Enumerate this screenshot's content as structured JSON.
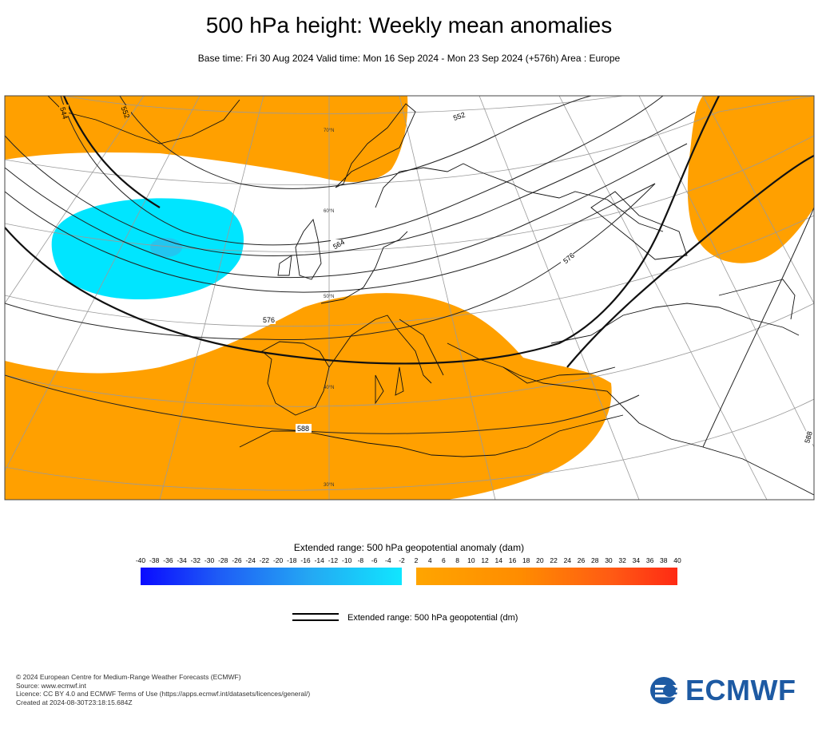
{
  "title": "500 hPa height: Weekly mean anomalies",
  "subtitle": "Base time: Fri 30 Aug 2024 Valid time: Mon 16 Sep 2024 - Mon 23 Sep 2024 (+576h) Area : Europe",
  "map": {
    "contour_labels": [
      "552",
      "564",
      "576",
      "588",
      "564",
      "576",
      "544",
      "552",
      "588"
    ],
    "latitude_labels": [
      "70°N",
      "60°N",
      "50°N",
      "40°N",
      "30°N"
    ],
    "colors": {
      "positive_anomaly": "#ffa000",
      "negative_anomaly": "#00e5ff",
      "ocean": "#ffffff",
      "coast": "#000000"
    }
  },
  "colorbar": {
    "title": "Extended range: 500 hPa geopotential anomaly (dam)",
    "negative_ticks": [
      "-40",
      "-38",
      "-36",
      "-34",
      "-32",
      "-30",
      "-28",
      "-26",
      "-24",
      "-22",
      "-20",
      "-18",
      "-16",
      "-14",
      "-12",
      "-10",
      "-8",
      "-6",
      "-4",
      "-2"
    ],
    "positive_ticks": [
      "2",
      "4",
      "6",
      "8",
      "10",
      "12",
      "14",
      "16",
      "18",
      "20",
      "22",
      "24",
      "26",
      "28",
      "30",
      "32",
      "34",
      "36",
      "38",
      "40"
    ]
  },
  "legend": {
    "label": "Extended range: 500 hPa geopotential (dm)"
  },
  "footer": {
    "line1": "© 2024 European Centre for Medium-Range Weather Forecasts (ECMWF)",
    "line2": "Source: www.ecmwf.int",
    "line3": "Licence: CC BY 4.0 and ECMWF Terms of Use (https://apps.ecmwf.int/datasets/licences/general/)",
    "line4": "Created at 2024-08-30T23:18:15.684Z"
  },
  "logo": {
    "text": "ECMWF",
    "color": "#1d5aa3"
  }
}
